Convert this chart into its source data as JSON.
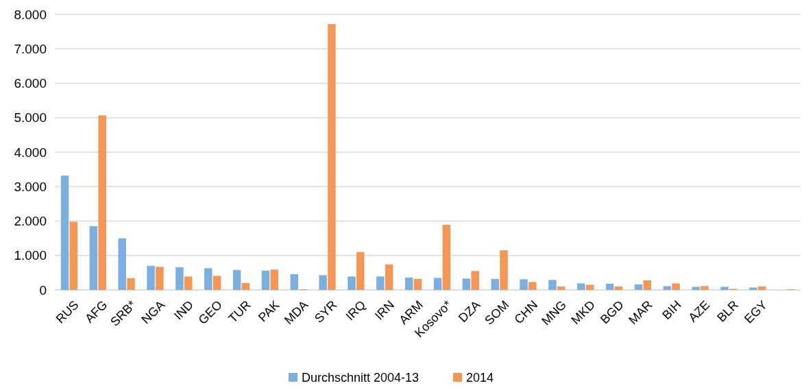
{
  "chart_data": {
    "type": "bar",
    "categories": [
      "RUS",
      "AFG",
      "SRB*",
      "NGA",
      "IND",
      "GEO",
      "TUR",
      "PAK",
      "MDA",
      "SYR",
      "IRQ",
      "IRN",
      "ARM",
      "Kosovo*",
      "DZA",
      "SOM",
      "CHN",
      "MNG",
      "MKD",
      "BGD",
      "MAR",
      "BIH",
      "AZE",
      "BLR",
      "EGY",
      null
    ],
    "series": [
      {
        "name": "Durchschnitt 2004-13",
        "color": "#7cafde",
        "values": [
          3320,
          1850,
          1500,
          700,
          660,
          630,
          580,
          560,
          460,
          430,
          390,
          390,
          360,
          350,
          330,
          320,
          310,
          290,
          190,
          180,
          160,
          110,
          90,
          90,
          70,
          null
        ]
      },
      {
        "name": "2014",
        "color": "#f39656",
        "values": [
          1980,
          5070,
          340,
          670,
          390,
          410,
          200,
          590,
          20,
          7720,
          1100,
          740,
          320,
          1890,
          550,
          1150,
          230,
          100,
          150,
          100,
          280,
          190,
          110,
          30,
          100,
          20
        ]
      }
    ],
    "ylim": [
      0,
      8000
    ],
    "yticks": [
      0,
      {
        "value": 1000,
        "label": "1.000"
      },
      {
        "value": 2000,
        "label": "2.000"
      },
      {
        "value": 3000,
        "label": "3.000"
      },
      {
        "value": 4000,
        "label": "4.000"
      },
      {
        "value": 5000,
        "label": "5.000"
      },
      {
        "value": 6000,
        "label": "6.000"
      },
      {
        "value": 7000,
        "label": "7.000"
      },
      {
        "value": 8000,
        "label": "8.000"
      }
    ],
    "grid": "y",
    "legend": "bottom"
  }
}
